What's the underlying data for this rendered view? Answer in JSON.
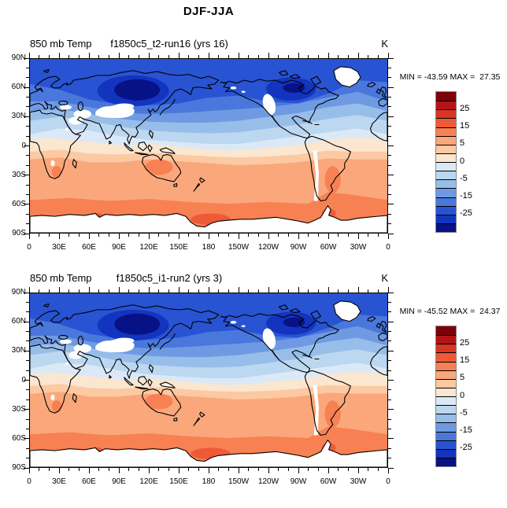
{
  "title": "DJF-JJA",
  "panels": [
    {
      "var_label": "850 mb Temp",
      "run_label": "f1850c5_t2-run16 (yrs 16)",
      "unit": "K",
      "min_max": "MIN = -43.59 MAX =  27.35"
    },
    {
      "var_label": "850 mb Temp",
      "run_label": "f1850c5_i1-run2 (yrs 3)",
      "unit": "K",
      "min_max": "MIN = -45.52 MAX =  24.37"
    }
  ],
  "axes": {
    "x_tick_labels": [
      "0",
      "30E",
      "60E",
      "90E",
      "120E",
      "150E",
      "180",
      "150W",
      "120W",
      "90W",
      "60W",
      "30W",
      "0"
    ],
    "y_tick_labels": [
      "90N",
      "60N",
      "30N",
      "0",
      "30S",
      "60S",
      "90S"
    ]
  },
  "colorbar": {
    "labels": [
      "25",
      "15",
      "5",
      "0",
      "-5",
      "-15",
      "-25"
    ],
    "label_boundary_indices": [
      2,
      4,
      6,
      8,
      10,
      12,
      14
    ],
    "palette_top_to_bottom": [
      "#7E0008",
      "#B41418",
      "#DA3423",
      "#EF5A36",
      "#F78152",
      "#FAA77B",
      "#FCC9A2",
      "#FBE6D0",
      "#DBE9F6",
      "#BCD7F0",
      "#97BEE9",
      "#6F9AE3",
      "#4A77DC",
      "#2853D3",
      "#1334BE",
      "#071287"
    ]
  },
  "chart_data": {
    "type": "heatmap",
    "subtype": "filled_contour_world_map_pair",
    "title": "DJF-JJA",
    "units": "K",
    "variable": "850 mb Temp",
    "projection": "cylindrical_equidistant_0_360",
    "contour_levels": [
      -30,
      -25,
      -20,
      -15,
      -10,
      -5,
      -2,
      0,
      2,
      5,
      10,
      15,
      20,
      25,
      30
    ],
    "palette_top_to_bottom": [
      "#7E0008",
      "#B41418",
      "#DA3423",
      "#EF5A36",
      "#F78152",
      "#FAA77B",
      "#FCC9A2",
      "#FBE6D0",
      "#DBE9F6",
      "#BCD7F0",
      "#97BEE9",
      "#6F9AE3",
      "#4A77DC",
      "#2853D3",
      "#1334BE",
      "#071287"
    ],
    "x_axis": {
      "ticks_deg_lon": [
        0,
        30,
        60,
        90,
        120,
        150,
        180,
        210,
        240,
        270,
        300,
        330,
        360
      ],
      "tick_labels": [
        "0",
        "30E",
        "60E",
        "90E",
        "120E",
        "150E",
        "180",
        "150W",
        "120W",
        "90W",
        "60W",
        "30W",
        "0"
      ],
      "minor_tick_interval_deg": 10
    },
    "y_axis": {
      "ticks_deg_lat": [
        90,
        60,
        30,
        0,
        -30,
        -60,
        -90
      ],
      "tick_labels": [
        "90N",
        "60N",
        "30N",
        "0",
        "30S",
        "60S",
        "90S"
      ],
      "minor_tick_interval_deg": 10
    },
    "panels": [
      {
        "variable": "850 mb Temp",
        "run": "f1850c5_t2-run16",
        "years": "yrs 16",
        "min": -43.59,
        "max": 27.35,
        "pattern_summary": "negative (blue) northern hemisphere, minima below -30 over Siberia and NE Canada; positive (orange) southern hemisphere peaking 10-15 over Australia and Patagonia; white masked terrain over Tibet, Rockies, Andes, Greenland, Antarctica"
      },
      {
        "variable": "850 mb Temp",
        "run": "f1850c5_i1-run2",
        "years": "yrs 3",
        "min": -45.52,
        "max": 24.37,
        "pattern_summary": "same spatial pattern as run16 with slightly stronger northern minimum"
      }
    ],
    "grid": false,
    "legend_position": "right-of-each-panel"
  }
}
